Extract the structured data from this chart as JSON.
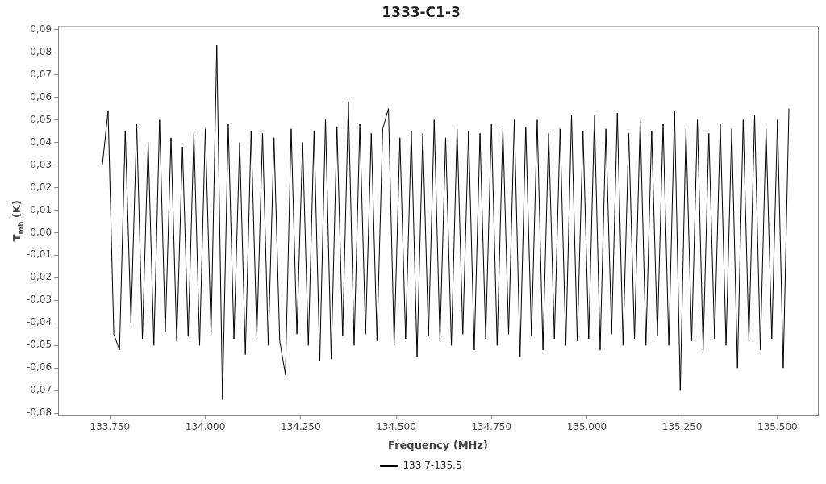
{
  "chart_data": {
    "type": "line",
    "title": "1333-C1-3",
    "xlabel": "Frequency (MHz)",
    "ylabel": "T$_{mb}$ (K)",
    "xlim": [
      133614,
      135606
    ],
    "xticks": [
      {
        "value": 133750,
        "label": "133.750"
      },
      {
        "value": 134000,
        "label": "134.000"
      },
      {
        "value": 134250,
        "label": "134.250"
      },
      {
        "value": 134500,
        "label": "134.500"
      },
      {
        "value": 134750,
        "label": "134.750"
      },
      {
        "value": 135000,
        "label": "135.000"
      },
      {
        "value": 135250,
        "label": "135.250"
      },
      {
        "value": 135500,
        "label": "135.500"
      }
    ],
    "ylim": [
      -0.081,
      0.0915
    ],
    "yticks": [
      {
        "value": -0.08,
        "label": "-0,08"
      },
      {
        "value": -0.07,
        "label": "-0,07"
      },
      {
        "value": -0.06,
        "label": "-0,06"
      },
      {
        "value": -0.05,
        "label": "-0,05"
      },
      {
        "value": -0.04,
        "label": "-0,04"
      },
      {
        "value": -0.03,
        "label": "-0,03"
      },
      {
        "value": -0.02,
        "label": "-0,02"
      },
      {
        "value": -0.01,
        "label": "-0,01"
      },
      {
        "value": 0,
        "label": "0,00"
      },
      {
        "value": 0.01,
        "label": "0,01"
      },
      {
        "value": 0.02,
        "label": "0,02"
      },
      {
        "value": 0.03,
        "label": "0,03"
      },
      {
        "value": 0.04,
        "label": "0,04"
      },
      {
        "value": 0.05,
        "label": "0,05"
      },
      {
        "value": 0.06,
        "label": "0,06"
      },
      {
        "value": 0.07,
        "label": "0,07"
      },
      {
        "value": 0.08,
        "label": "0,08"
      },
      {
        "value": 0.09,
        "label": "0,09"
      }
    ],
    "grid": false,
    "legend": "bottom",
    "marker": "none",
    "line_style": "solid",
    "series": [
      {
        "name": "133.7-135.5",
        "color": "#000000",
        "x": [
          133730,
          133745,
          133760,
          133775,
          133790,
          133805,
          133820,
          133835,
          133850,
          133865,
          133880,
          133895,
          133910,
          133925,
          133940,
          133955,
          133970,
          133985,
          134000,
          134015,
          134030,
          134045,
          134060,
          134075,
          134090,
          134105,
          134120,
          134135,
          134150,
          134165,
          134180,
          134195,
          134210,
          134225,
          134240,
          134255,
          134270,
          134285,
          134300,
          134315,
          134330,
          134345,
          134360,
          134375,
          134390,
          134405,
          134420,
          134435,
          134450,
          134465,
          134480,
          134495,
          134510,
          134525,
          134540,
          134555,
          134570,
          134585,
          134600,
          134615,
          134630,
          134645,
          134660,
          134675,
          134690,
          134705,
          134720,
          134735,
          134750,
          134765,
          134780,
          134795,
          134810,
          134825,
          134840,
          134855,
          134870,
          134885,
          134900,
          134915,
          134930,
          134945,
          134960,
          134975,
          134990,
          135005,
          135020,
          135035,
          135050,
          135065,
          135080,
          135095,
          135110,
          135125,
          135140,
          135155,
          135170,
          135185,
          135200,
          135215,
          135230,
          135245,
          135260,
          135275,
          135290,
          135305,
          135320,
          135335,
          135350,
          135365,
          135380,
          135395,
          135410,
          135425,
          135440,
          135455,
          135470,
          135485,
          135500,
          135515,
          135530
        ],
        "values": [
          0.03,
          0.054,
          -0.045,
          -0.052,
          0.045,
          -0.04,
          0.048,
          -0.047,
          0.04,
          -0.05,
          0.05,
          -0.044,
          0.042,
          -0.048,
          0.038,
          -0.046,
          0.044,
          -0.05,
          0.046,
          -0.045,
          0.083,
          -0.074,
          0.048,
          -0.047,
          0.04,
          -0.054,
          0.045,
          -0.046,
          0.044,
          -0.05,
          0.042,
          -0.048,
          -0.063,
          0.046,
          -0.045,
          0.04,
          -0.05,
          0.045,
          -0.057,
          0.05,
          -0.056,
          0.047,
          -0.046,
          0.058,
          -0.05,
          0.048,
          -0.045,
          0.044,
          -0.048,
          0.046,
          0.055,
          -0.05,
          0.042,
          -0.047,
          0.045,
          -0.055,
          0.044,
          -0.046,
          0.05,
          -0.048,
          0.042,
          -0.05,
          0.046,
          -0.045,
          0.045,
          -0.052,
          0.044,
          -0.047,
          0.048,
          -0.05,
          0.046,
          -0.045,
          0.05,
          -0.055,
          0.047,
          -0.046,
          0.05,
          -0.052,
          0.044,
          -0.047,
          0.046,
          -0.05,
          0.052,
          -0.048,
          0.045,
          -0.047,
          0.052,
          -0.052,
          0.046,
          -0.045,
          0.053,
          -0.05,
          0.044,
          -0.047,
          0.05,
          -0.05,
          0.045,
          -0.046,
          0.048,
          -0.05,
          0.054,
          -0.07,
          0.046,
          -0.048,
          0.05,
          -0.052,
          0.044,
          -0.047,
          0.048,
          -0.05,
          0.046,
          -0.06,
          0.05,
          -0.048,
          0.052,
          -0.052,
          0.046,
          -0.047,
          0.05,
          -0.06,
          0.055
        ]
      }
    ]
  }
}
